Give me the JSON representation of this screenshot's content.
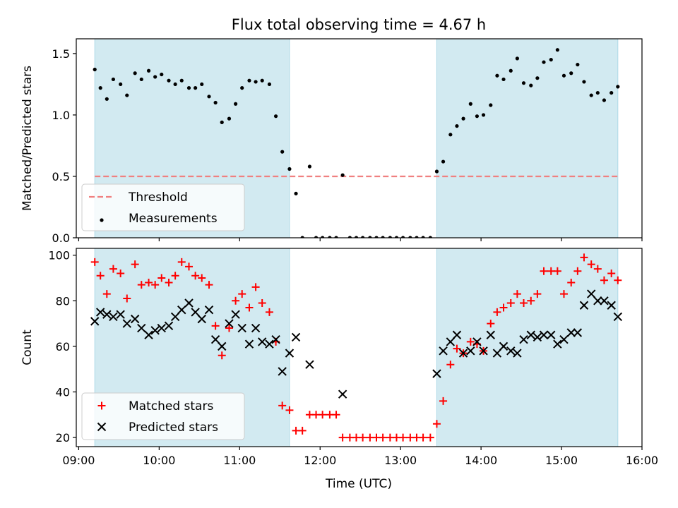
{
  "chart_data": {
    "title": "Flux total observing time = 4.67 h",
    "xlabel": "Time (UTC)",
    "x_unit": "hours UTC",
    "xlim": [
      8.97,
      16.0
    ],
    "x_ticks": [
      9,
      10,
      11,
      12,
      13,
      14,
      15,
      16
    ],
    "x_tick_labels": [
      "09:00",
      "10:00",
      "11:00",
      "12:00",
      "13:00",
      "14:00",
      "15:00",
      "16:00"
    ],
    "observing_windows": [
      [
        9.2,
        11.62
      ],
      [
        13.45,
        15.7
      ]
    ],
    "window_color": "#add8e6",
    "panels": [
      {
        "type": "scatter",
        "ylabel": "Matched/Predicted stars",
        "ylim": [
          0,
          1.62
        ],
        "y_ticks": [
          0,
          0.5,
          1.0,
          1.5
        ],
        "y_tick_labels": [
          "0.0",
          "0.5",
          "1.0",
          "1.5"
        ],
        "legend_position": "lower-left",
        "threshold": {
          "name": "Threshold",
          "value": 0.5,
          "x_range": [
            9.2,
            15.7
          ],
          "color": "#f08080"
        },
        "series": [
          {
            "name": "Measurements",
            "marker": "dot",
            "color": "#000000",
            "x": [
              9.2,
              9.27,
              9.35,
              9.43,
              9.52,
              9.6,
              9.7,
              9.78,
              9.87,
              9.95,
              10.03,
              10.12,
              10.2,
              10.28,
              10.37,
              10.45,
              10.53,
              10.62,
              10.7,
              10.78,
              10.87,
              10.95,
              11.03,
              11.12,
              11.2,
              11.28,
              11.37,
              11.45,
              11.53,
              11.62,
              11.7,
              11.78,
              11.87,
              11.95,
              12.03,
              12.12,
              12.2,
              12.28,
              12.37,
              12.45,
              12.53,
              12.62,
              12.7,
              12.78,
              12.87,
              12.95,
              13.03,
              13.12,
              13.2,
              13.28,
              13.37,
              13.45,
              13.53,
              13.62,
              13.7,
              13.78,
              13.87,
              13.95,
              14.03,
              14.12,
              14.2,
              14.28,
              14.37,
              14.45,
              14.53,
              14.62,
              14.7,
              14.78,
              14.87,
              14.95,
              15.03,
              15.12,
              15.2,
              15.28,
              15.37,
              15.45,
              15.53,
              15.62,
              15.7
            ],
            "y": [
              1.37,
              1.22,
              1.13,
              1.29,
              1.25,
              1.16,
              1.34,
              1.29,
              1.36,
              1.31,
              1.33,
              1.28,
              1.25,
              1.28,
              1.22,
              1.22,
              1.25,
              1.15,
              1.1,
              0.94,
              0.97,
              1.09,
              1.22,
              1.28,
              1.27,
              1.28,
              1.25,
              0.99,
              0.7,
              0.56,
              0.36,
              0.0,
              0.58,
              0.0,
              0.0,
              0.0,
              0.0,
              0.51,
              0.0,
              0.0,
              0.0,
              0.0,
              0.0,
              0.0,
              0.0,
              0.0,
              0.0,
              0.0,
              0.0,
              0.0,
              0.0,
              0.54,
              0.62,
              0.84,
              0.91,
              0.97,
              1.09,
              0.99,
              1.0,
              1.08,
              1.32,
              1.29,
              1.36,
              1.46,
              1.26,
              1.24,
              1.3,
              1.43,
              1.45,
              1.53,
              1.32,
              1.34,
              1.41,
              1.27,
              1.16,
              1.18,
              1.12,
              1.18,
              1.23
            ]
          }
        ]
      },
      {
        "type": "scatter",
        "ylabel": "Count",
        "ylim": [
          16,
          103
        ],
        "y_ticks": [
          20,
          40,
          60,
          80,
          100
        ],
        "y_tick_labels": [
          "20",
          "40",
          "60",
          "80",
          "100"
        ],
        "legend_position": "lower-left",
        "series": [
          {
            "name": "Matched stars",
            "marker": "plus",
            "color": "#ff0000",
            "x": [
              9.2,
              9.27,
              9.35,
              9.43,
              9.52,
              9.6,
              9.7,
              9.78,
              9.87,
              9.95,
              10.03,
              10.12,
              10.2,
              10.28,
              10.37,
              10.45,
              10.53,
              10.62,
              10.7,
              10.78,
              10.87,
              10.95,
              11.03,
              11.12,
              11.2,
              11.28,
              11.37,
              11.45,
              11.53,
              11.62,
              11.7,
              11.78,
              11.87,
              11.95,
              12.03,
              12.12,
              12.2,
              12.28,
              12.37,
              12.45,
              12.53,
              12.62,
              12.7,
              12.78,
              12.87,
              12.95,
              13.03,
              13.12,
              13.2,
              13.28,
              13.37,
              13.45,
              13.53,
              13.62,
              13.7,
              13.78,
              13.87,
              13.95,
              14.03,
              14.12,
              14.2,
              14.28,
              14.37,
              14.45,
              14.53,
              14.62,
              14.7,
              14.78,
              14.87,
              14.95,
              15.03,
              15.12,
              15.2,
              15.28,
              15.37,
              15.45,
              15.53,
              15.62,
              15.7
            ],
            "y": [
              97,
              91,
              83,
              94,
              92,
              81,
              96,
              87,
              88,
              87,
              90,
              88,
              91,
              97,
              95,
              91,
              90,
              87,
              69,
              56,
              68,
              80,
              83,
              77,
              86,
              79,
              75,
              62,
              34,
              32,
              23,
              23,
              30,
              30,
              30,
              30,
              30,
              20,
              20,
              20,
              20,
              20,
              20,
              20,
              20,
              20,
              20,
              20,
              20,
              20,
              20,
              26,
              36,
              52,
              59,
              57,
              62,
              61,
              58,
              70,
              75,
              77,
              79,
              83,
              79,
              80,
              83,
              93,
              93,
              93,
              83,
              88,
              93,
              99,
              96,
              94,
              89,
              92,
              89
            ]
          },
          {
            "name": "Predicted stars",
            "marker": "x",
            "color": "#000000",
            "x": [
              9.2,
              9.27,
              9.35,
              9.43,
              9.52,
              9.6,
              9.7,
              9.78,
              9.87,
              9.95,
              10.03,
              10.12,
              10.2,
              10.28,
              10.37,
              10.45,
              10.53,
              10.62,
              10.7,
              10.78,
              10.87,
              10.95,
              11.03,
              11.12,
              11.2,
              11.28,
              11.37,
              11.45,
              11.53,
              11.62,
              11.7,
              11.87,
              12.28,
              13.45,
              13.53,
              13.62,
              13.7,
              13.78,
              13.87,
              13.95,
              14.03,
              14.12,
              14.2,
              14.28,
              14.37,
              14.45,
              14.53,
              14.62,
              14.7,
              14.78,
              14.87,
              14.95,
              15.03,
              15.12,
              15.2,
              15.28,
              15.37,
              15.45,
              15.53,
              15.62,
              15.7
            ],
            "y": [
              71,
              75,
              74,
              73,
              74,
              70,
              72,
              68,
              65,
              67,
              68,
              69,
              73,
              76,
              79,
              75,
              72,
              76,
              63,
              60,
              70,
              74,
              68,
              61,
              68,
              62,
              61,
              63,
              49,
              57,
              64,
              52,
              39,
              48,
              58,
              62,
              65,
              57,
              58,
              62,
              58,
              65,
              57,
              60,
              58,
              57,
              63,
              65,
              64,
              65,
              65,
              61,
              63,
              66,
              66,
              78,
              83,
              80,
              80,
              78,
              73
            ]
          }
        ]
      }
    ]
  }
}
